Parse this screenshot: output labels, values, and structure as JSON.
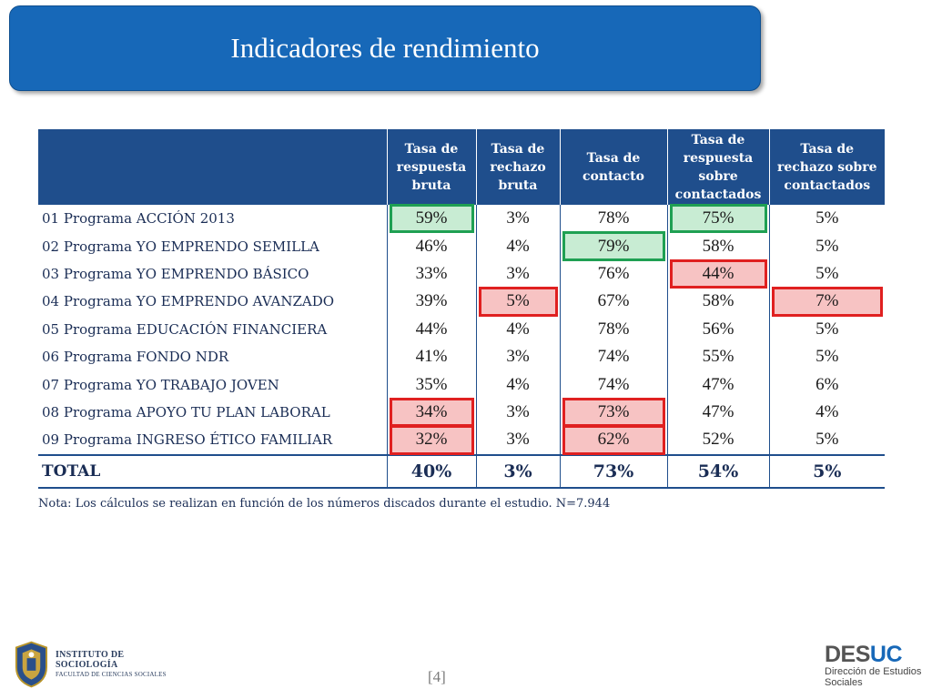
{
  "slide": {
    "title": "Indicadores de rendimiento",
    "page_number": "[4]",
    "note": "Nota: Los cálculos se realizan en función de los números discados durante el estudio. N=7.944"
  },
  "table": {
    "headers": [
      "",
      "Tasa de respuesta bruta",
      "Tasa de rechazo bruta",
      "Tasa de contacto",
      "Tasa de respuesta sobre contactados",
      "Tasa de rechazo sobre contactados"
    ],
    "rows": [
      {
        "label": "01 Programa ACCIÓN 2013",
        "values": [
          "59%",
          "3%",
          "78%",
          "75%",
          "5%"
        ]
      },
      {
        "label": "02 Programa YO EMPRENDO SEMILLA",
        "values": [
          "46%",
          "4%",
          "79%",
          "58%",
          "5%"
        ]
      },
      {
        "label": "03 Programa YO EMPRENDO BÁSICO",
        "values": [
          "33%",
          "3%",
          "76%",
          "44%",
          "5%"
        ]
      },
      {
        "label": "04 Programa YO EMPRENDO AVANZADO",
        "values": [
          "39%",
          "5%",
          "67%",
          "58%",
          "7%"
        ]
      },
      {
        "label": "05 Programa EDUCACIÓN FINANCIERA",
        "values": [
          "44%",
          "4%",
          "78%",
          "56%",
          "5%"
        ]
      },
      {
        "label": "06 Programa FONDO NDR",
        "values": [
          "41%",
          "3%",
          "74%",
          "55%",
          "5%"
        ]
      },
      {
        "label": "07 Programa YO TRABAJO JOVEN",
        "values": [
          "35%",
          "4%",
          "74%",
          "47%",
          "6%"
        ]
      },
      {
        "label": "08 Programa APOYO TU PLAN LABORAL",
        "values": [
          "34%",
          "3%",
          "73%",
          "47%",
          "4%"
        ]
      },
      {
        "label": "09 Programa INGRESO ÉTICO FAMILIAR",
        "values": [
          "32%",
          "3%",
          "62%",
          "52%",
          "5%"
        ]
      }
    ],
    "total": {
      "label": "TOTAL",
      "values": [
        "40%",
        "3%",
        "73%",
        "54%",
        "5%"
      ]
    }
  },
  "footer": {
    "left_logo_line1": "INSTITUTO DE SOCIOLOGÍA",
    "left_logo_line2": "FACULTAD DE CIENCIAS SOCIALES",
    "right_logo_part1": "DES",
    "right_logo_part2": "UC",
    "right_logo_sub1": "Dirección de Estudios",
    "right_logo_sub2": "Sociales"
  },
  "colors": {
    "title_bg": "#1768b8",
    "header_bg": "#1f4e8c",
    "highlight_green_border": "#1fa053",
    "highlight_green_fill": "#c8ecd3",
    "highlight_red_border": "#e02020",
    "highlight_red_fill": "#f7c3c3"
  }
}
